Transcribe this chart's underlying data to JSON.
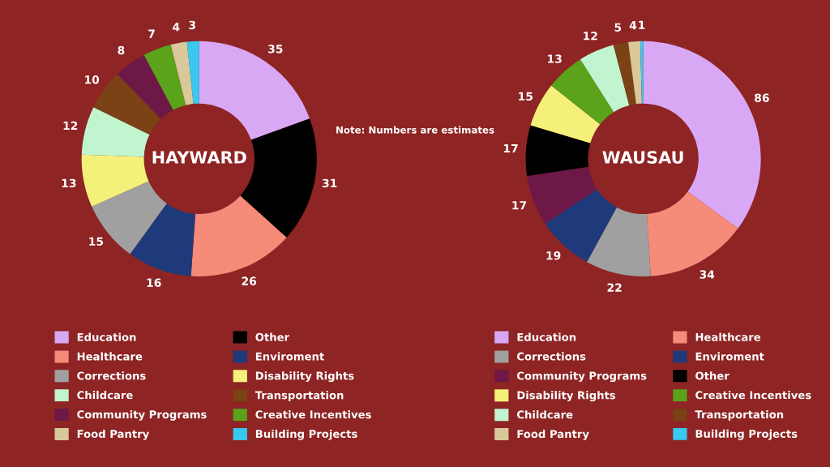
{
  "chart_data": [
    {
      "type": "donut",
      "title": "HAYWARD",
      "categories": [
        "Education",
        "Other",
        "Healthcare",
        "Enviroment",
        "Corrections",
        "Disability Rights",
        "Childcare",
        "Transportation",
        "Community Programs",
        "Creative Incentives",
        "Food Pantry",
        "Building Projects"
      ],
      "values": [
        35,
        31,
        26,
        16,
        15,
        13,
        12,
        10,
        8,
        7,
        4,
        3
      ],
      "colors": [
        "#d9a8f5",
        "#000000",
        "#f58b78",
        "#1f3a7a",
        "#a0a0a0",
        "#f5f07a",
        "#c0f5d0",
        "#7a4215",
        "#6e1848",
        "#5aa31a",
        "#d9c89a",
        "#38c8f0"
      ],
      "data_labels": true,
      "legend": "bottom",
      "annotations": [
        "Note: Numbers are estimates"
      ]
    },
    {
      "type": "donut",
      "title": "WAUSAU",
      "categories": [
        "Education",
        "Healthcare",
        "Corrections",
        "Enviroment",
        "Community Programs",
        "Other",
        "Disability Rights",
        "Creative Incentives",
        "Childcare",
        "Transportation",
        "Food Pantry",
        "Building Projects"
      ],
      "values": [
        86,
        34,
        22,
        19,
        17,
        17,
        15,
        13,
        12,
        5,
        4,
        1
      ],
      "colors": [
        "#d9a8f5",
        "#f58b78",
        "#a0a0a0",
        "#1f3a7a",
        "#6e1848",
        "#000000",
        "#f5f07a",
        "#5aa31a",
        "#c0f5d0",
        "#7a4215",
        "#d9c89a",
        "#38c8f0"
      ],
      "data_labels": true,
      "legend": "bottom"
    }
  ]
}
